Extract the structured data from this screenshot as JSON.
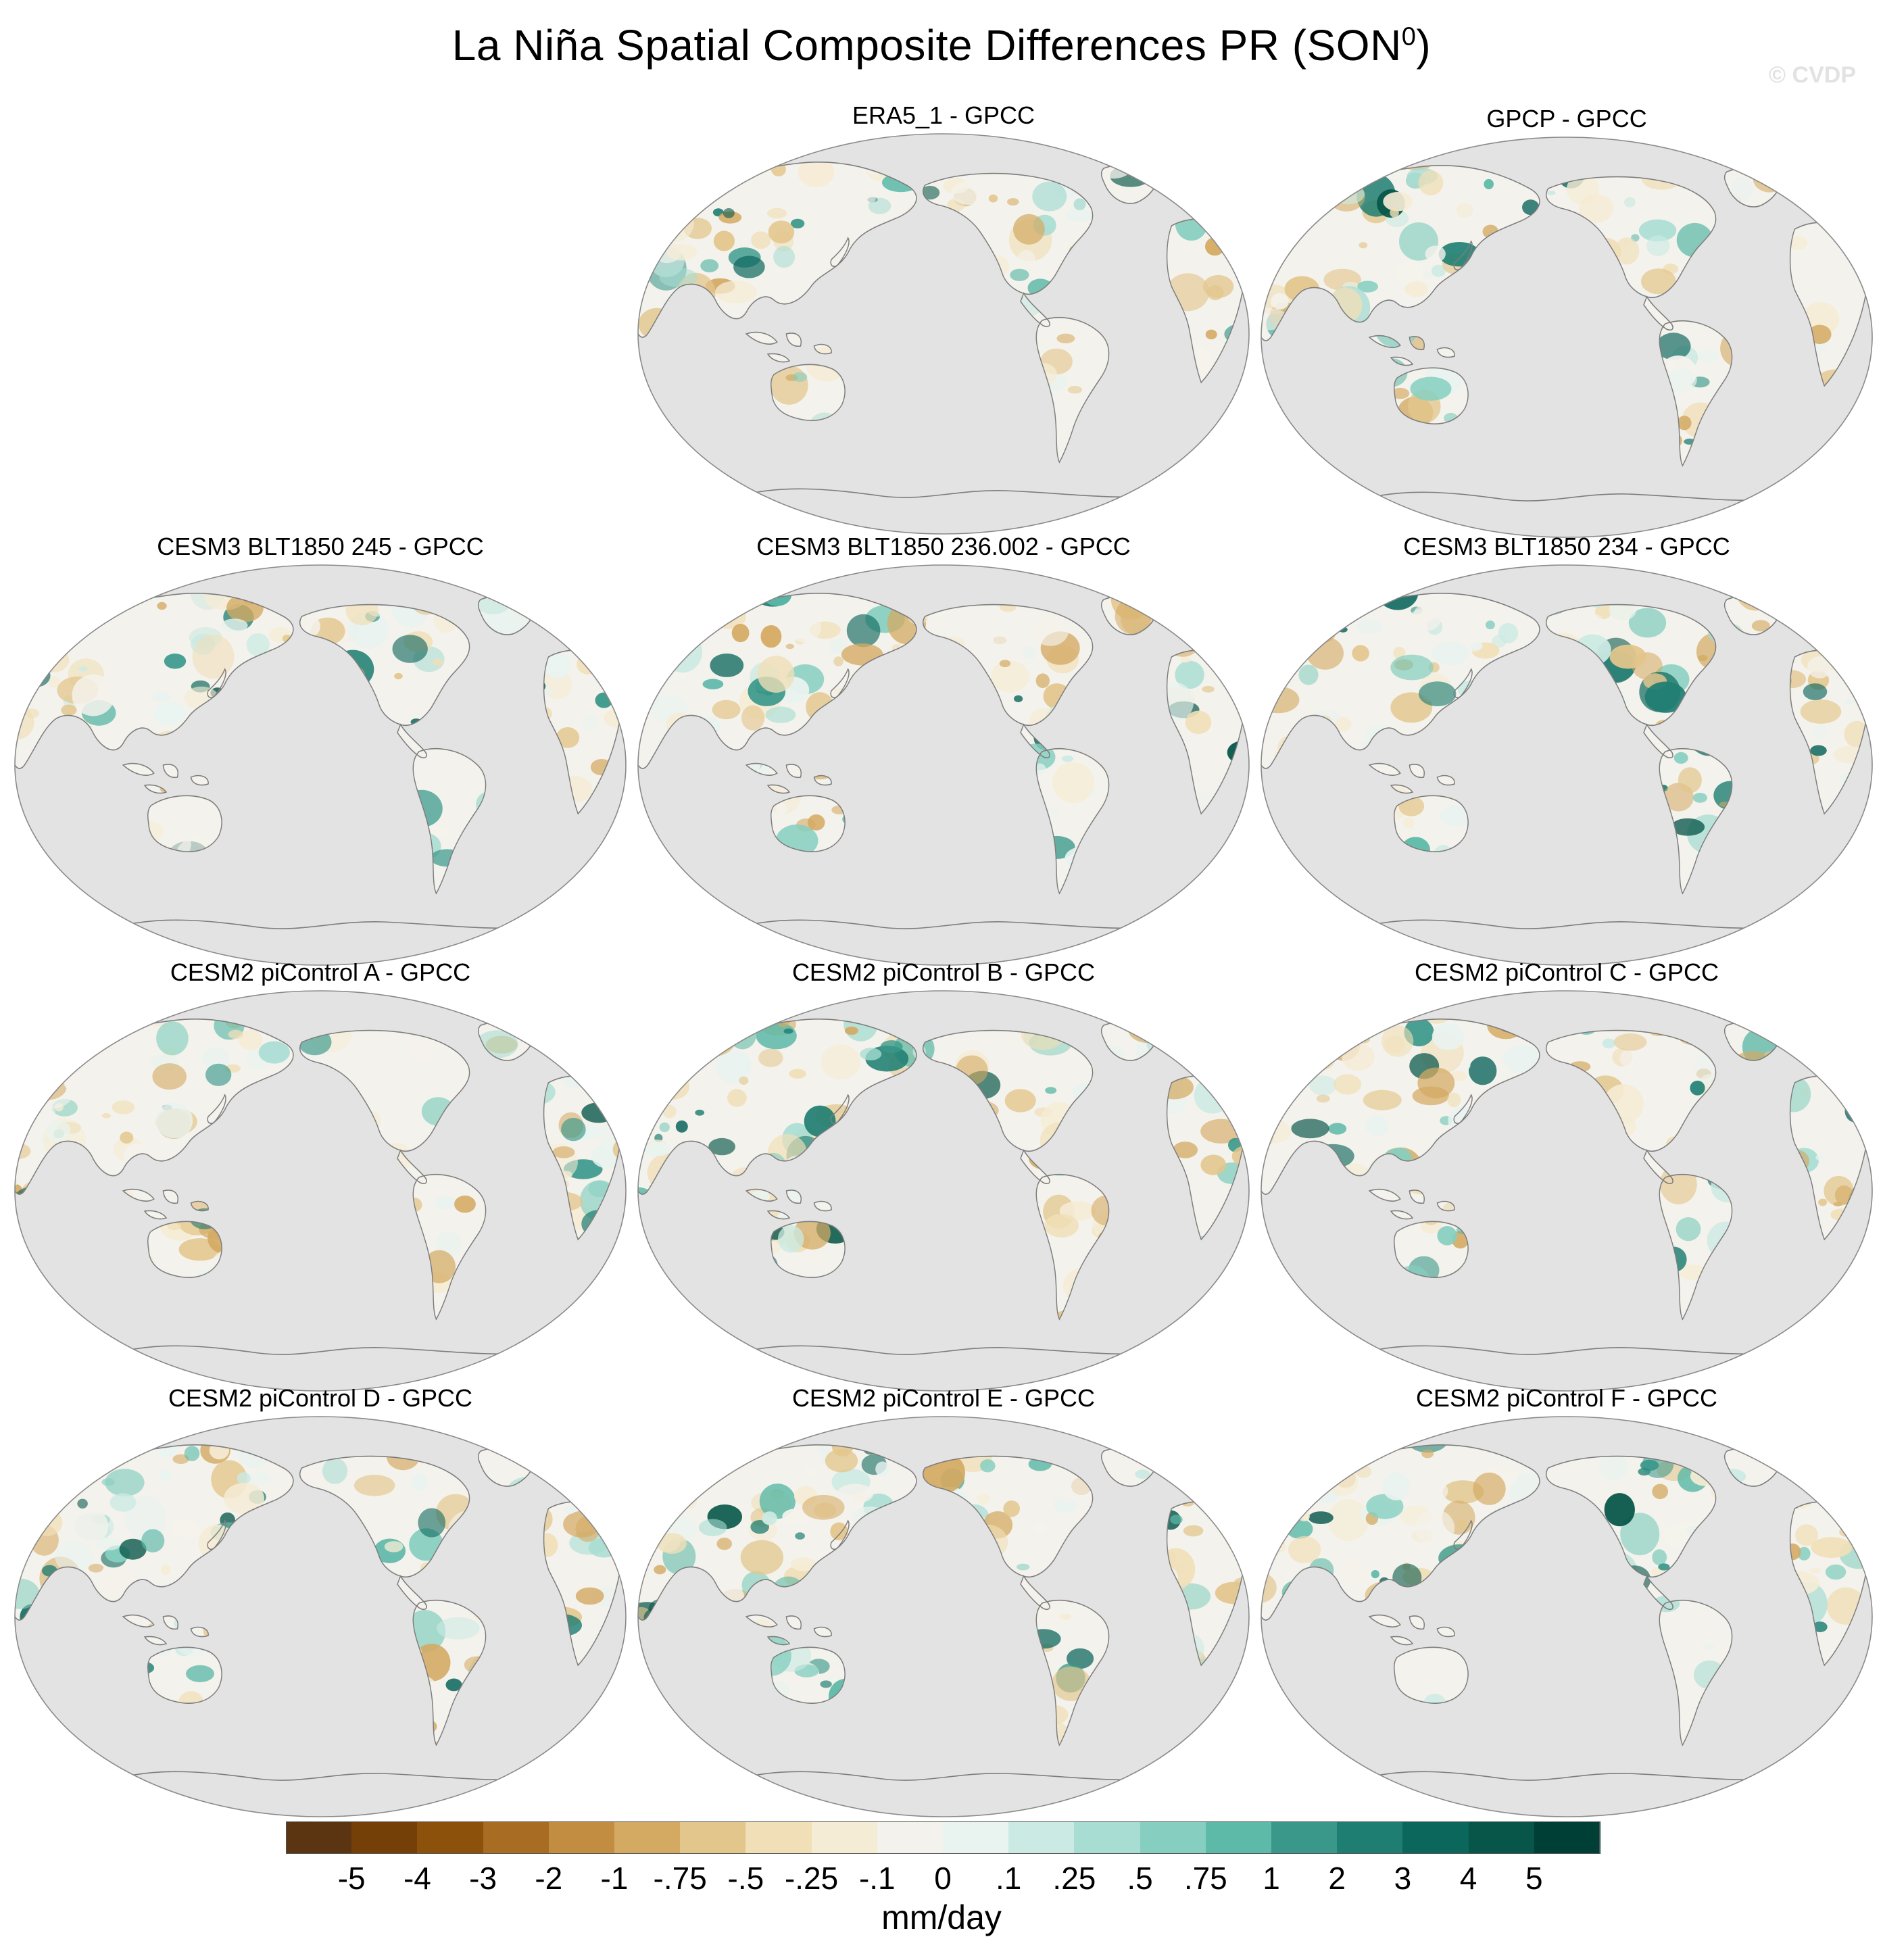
{
  "figure": {
    "title_main": "La Niña Spatial Composite Differences PR (SON",
    "title_sup": "0",
    "title_close": ")",
    "watermark": "© CVDP"
  },
  "panels": [
    {
      "label": "ERA5_1 - GPCC",
      "seed": 11
    },
    {
      "label": "GPCP - GPCC",
      "seed": 23
    },
    {
      "label": "CESM3 BLT1850 245 - GPCC",
      "seed": 37
    },
    {
      "label": "CESM3 BLT1850 236.002 - GPCC",
      "seed": 41
    },
    {
      "label": "CESM3 BLT1850 234 - GPCC",
      "seed": 53
    },
    {
      "label": "CESM2 piControl A - GPCC",
      "seed": 67
    },
    {
      "label": "CESM2 piControl B - GPCC",
      "seed": 71
    },
    {
      "label": "CESM2 piControl C - GPCC",
      "seed": 83
    },
    {
      "label": "CESM2 piControl D - GPCC",
      "seed": 97
    },
    {
      "label": "CESM2 piControl E - GPCC",
      "seed": 101
    },
    {
      "label": "CESM2 piControl F - GPCC",
      "seed": 113
    }
  ],
  "colorbar": {
    "unit": "mm/day",
    "labels": [
      "-5",
      "-4",
      "-3",
      "-2",
      "-1",
      "-.75",
      "-.5",
      "-.25",
      "-.1",
      "0",
      ".1",
      ".25",
      ".5",
      ".75",
      "1",
      "2",
      "3",
      "4",
      "5"
    ],
    "colors": [
      "#5b3511",
      "#744008",
      "#8c520b",
      "#a86d22",
      "#c28d40",
      "#d4aa63",
      "#e3c68c",
      "#f0dfb7",
      "#f5ecd5",
      "#f4f2ec",
      "#e9f3f0",
      "#cbeae3",
      "#a8ddd3",
      "#86cfc0",
      "#5db9a8",
      "#39988a",
      "#1f7e72",
      "#0b665c",
      "#075649",
      "#003f36"
    ]
  },
  "map_style": {
    "ocean_color": "#e3e3e3",
    "land_base_color": "#f4f2ec",
    "coast_color": "#7d7d7d",
    "outline_color": "#8a8a8a"
  }
}
